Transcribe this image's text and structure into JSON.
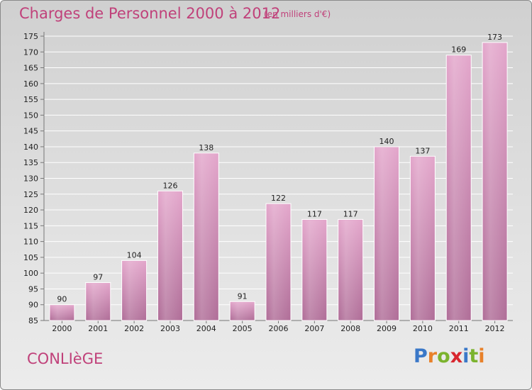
{
  "header": {
    "title": "Charges de Personnel 2000 à 2012",
    "unit": "(en milliers d'€)"
  },
  "footer": {
    "commune": "CONLIèGE",
    "brand": [
      "P",
      "r",
      "o",
      "x",
      "i",
      "t",
      "i"
    ],
    "brand_colors": [
      "#3a78c8",
      "#e8812a",
      "#7bb32e",
      "#d8262e",
      "#3a78c8",
      "#7bb32e",
      "#e8812a"
    ]
  },
  "colors": {
    "bar_top": "#e3a6cb",
    "bar_bottom": "#b06e98",
    "text_accent": "#c0417a"
  },
  "chart_data": {
    "type": "bar",
    "title": "Charges de Personnel 2000 à 2012",
    "subtitle": "(en milliers d'€)",
    "categories": [
      "2000",
      "2001",
      "2002",
      "2003",
      "2004",
      "2005",
      "2006",
      "2007",
      "2008",
      "2009",
      "2010",
      "2011",
      "2012"
    ],
    "values": [
      90,
      97,
      104,
      126,
      138,
      91,
      122,
      117,
      117,
      140,
      137,
      169,
      173
    ],
    "ylim": [
      85,
      175
    ],
    "yticks": [
      85,
      90,
      95,
      100,
      105,
      110,
      115,
      120,
      125,
      130,
      135,
      140,
      145,
      150,
      155,
      160,
      165,
      170,
      175
    ],
    "grid": true,
    "xlabel": "",
    "ylabel": ""
  }
}
